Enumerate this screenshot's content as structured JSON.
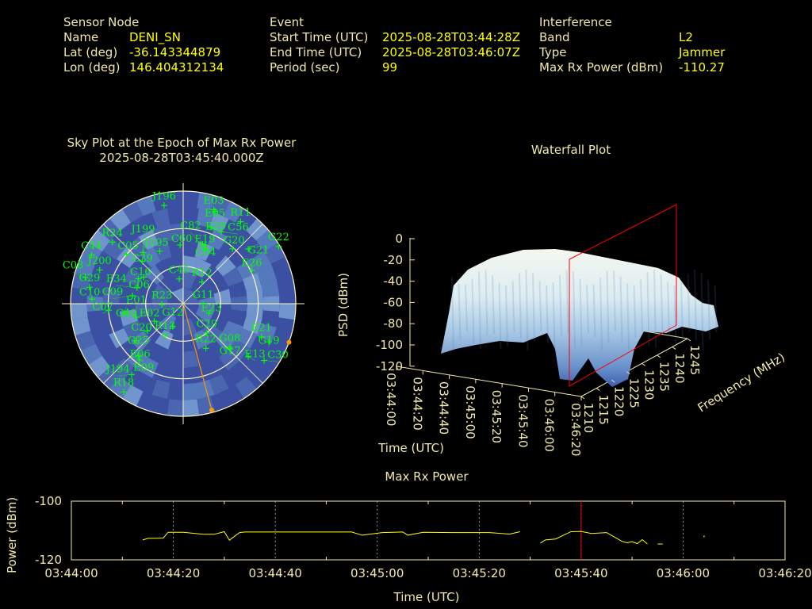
{
  "header": {
    "sensor": {
      "heading": "Sensor Node",
      "name_label": "Name",
      "name": "DENI_SN",
      "lat_label": "Lat (deg)",
      "lat": "-36.143344879",
      "lon_label": "Lon (deg)",
      "lon": "146.404312134"
    },
    "event": {
      "heading": "Event",
      "start_label": "Start Time (UTC)",
      "start": "2025-08-28T03:44:28Z",
      "end_label": "End Time (UTC)",
      "end": "2025-08-28T03:46:07Z",
      "period_label": "Period (sec)",
      "period": "99"
    },
    "interference": {
      "heading": "Interference",
      "band_label": "Band",
      "band": "L2",
      "type_label": "Type",
      "type": "Jammer",
      "power_label": "Max Rx Power (dBm)",
      "power": "-110.27"
    }
  },
  "colors": {
    "label": "#f2e8a8",
    "value": "#ffff00",
    "satellite": "#00ff00",
    "sky_bg": "#3b4fa3",
    "jammer": "#ff9900",
    "marker_line": "#ff0000"
  },
  "skyplot": {
    "title": "Sky Plot at the Epoch of Max Rx Power",
    "epoch": "2025-08-28T03:45:40.000Z",
    "elevation_rings_deg": [
      0,
      30,
      60
    ],
    "satellites": [
      {
        "id": "J196",
        "az": 349,
        "el": 10
      },
      {
        "id": "E03",
        "az": 18,
        "el": 11
      },
      {
        "id": "E05",
        "az": 19,
        "el": 12
      },
      {
        "id": "R11",
        "az": 35,
        "el": 10
      },
      {
        "id": "E29",
        "az": 20,
        "el": 25
      },
      {
        "id": "C56",
        "az": 28,
        "el": 25
      },
      {
        "id": "G22",
        "az": 59,
        "el": 1
      },
      {
        "id": "G20",
        "az": 42,
        "el": 31
      },
      {
        "id": "G21",
        "az": 50,
        "el": 22
      },
      {
        "id": "E26",
        "az": 64,
        "el": 29
      },
      {
        "id": "E19",
        "az": 18,
        "el": 40
      },
      {
        "id": "C04",
        "az": 21,
        "el": 40
      },
      {
        "id": "C82",
        "az": 22,
        "el": 43
      },
      {
        "id": "C60",
        "az": 357,
        "el": 43
      },
      {
        "id": "C45",
        "az": 351,
        "el": 70
      },
      {
        "id": "R12",
        "az": 41,
        "el": 67
      },
      {
        "id": "G11",
        "az": 91,
        "el": 74
      },
      {
        "id": "E23",
        "az": 110,
        "el": 68
      },
      {
        "id": "C29",
        "az": 141,
        "el": 60
      },
      {
        "id": "R22",
        "az": 153,
        "el": 50
      },
      {
        "id": "G08",
        "az": 133,
        "el": 39
      },
      {
        "id": "G17",
        "az": 134,
        "el": 38
      },
      {
        "id": "E21",
        "az": 113,
        "el": 22
      },
      {
        "id": "G19",
        "az": 114,
        "el": 15
      },
      {
        "id": "E13",
        "az": 129,
        "el": 23
      },
      {
        "id": "C30",
        "az": 125,
        "el": 11
      },
      {
        "id": "R13",
        "az": 210,
        "el": 61
      },
      {
        "id": "G12",
        "az": 205,
        "el": 70
      },
      {
        "id": "E02",
        "az": 239,
        "el": 63
      },
      {
        "id": "R23",
        "az": 268,
        "el": 73
      },
      {
        "id": "E01",
        "az": 254,
        "el": 51
      },
      {
        "id": "C20",
        "az": 233,
        "el": 54
      },
      {
        "id": "G25",
        "az": 232,
        "el": 42
      },
      {
        "id": "E06",
        "az": 221,
        "el": 35
      },
      {
        "id": "E09",
        "az": 218,
        "el": 33
      },
      {
        "id": "J194",
        "az": 216,
        "el": 20
      },
      {
        "id": "R18",
        "az": 214,
        "el": 5
      },
      {
        "id": "R24",
        "az": 311,
        "el": 15
      },
      {
        "id": "C05",
        "az": 311,
        "el": 30
      },
      {
        "id": "J195",
        "az": 336,
        "el": 44
      },
      {
        "id": "J199",
        "az": 322,
        "el": 38
      },
      {
        "id": "C39",
        "az": 316,
        "el": 43
      },
      {
        "id": "C16",
        "az": 299,
        "el": 49
      },
      {
        "id": "C06",
        "az": 304,
        "el": 52
      },
      {
        "id": "E34",
        "az": 289,
        "el": 51
      },
      {
        "id": "C09",
        "az": 279,
        "el": 49
      },
      {
        "id": "C40",
        "az": 261,
        "el": 42
      },
      {
        "id": "C07",
        "az": 265,
        "el": 30
      },
      {
        "id": "C10",
        "az": 273,
        "el": 17
      },
      {
        "id": "G29",
        "az": 280,
        "el": 14
      },
      {
        "id": "C44",
        "az": 298,
        "el": 7
      },
      {
        "id": "J200",
        "az": 292,
        "el": 18
      },
      {
        "id": "C08",
        "az": 285,
        "el": 9
      }
    ],
    "jammer_direction": {
      "az": 165,
      "el": 0
    },
    "jammer_points": [
      {
        "az": 165,
        "el": 2
      },
      {
        "az": 110,
        "el": 0
      }
    ]
  },
  "waterfall": {
    "title": "Waterfall Plot",
    "zlabel": "PSD (dBm)",
    "xlabel": "Time (UTC)",
    "ylabel": "Frequency (MHz)",
    "z_ticks": [
      "0",
      "-20",
      "-40",
      "-60",
      "-80",
      "-100",
      "-120"
    ],
    "time_ticks": [
      "03:44:00",
      "03:44:20",
      "03:44:40",
      "03:45:00",
      "03:45:20",
      "03:45:40",
      "03:46:00",
      "03:46:20"
    ],
    "freq_ticks": [
      "1210",
      "1215",
      "1220",
      "1225",
      "1230",
      "1235",
      "1240",
      "1245"
    ],
    "marker_time": "03:45:40"
  },
  "chart_data": {
    "type": "line",
    "title": "Max Rx Power",
    "xlabel": "Time (UTC)",
    "ylabel": "Power (dBm)",
    "xlim": [
      "03:44:00",
      "03:46:20"
    ],
    "ylim": [
      -120,
      -100
    ],
    "x_ticks": [
      "03:44:00",
      "03:44:20",
      "03:44:40",
      "03:45:00",
      "03:45:20",
      "03:45:40",
      "03:46:00",
      "03:46:20"
    ],
    "y_ticks": [
      "-100",
      "-120"
    ],
    "grid": "vertical dashed",
    "marker_time": "03:45:40",
    "segments": [
      [
        [
          "03:44:14",
          -113.2
        ],
        [
          "03:44:15",
          -112.7
        ],
        [
          "03:44:18",
          -112.6
        ],
        [
          "03:44:19",
          -110.6
        ],
        [
          "03:44:22",
          -110.6
        ],
        [
          "03:44:26",
          -111.3
        ],
        [
          "03:44:28",
          -111.3
        ],
        [
          "03:44:30",
          -110.4
        ],
        [
          "03:44:31",
          -113.3
        ],
        [
          "03:44:33",
          -110.7
        ],
        [
          "03:44:34",
          -110.5
        ],
        [
          "03:44:55",
          -110.5
        ],
        [
          "03:44:57",
          -111.6
        ],
        [
          "03:45:01",
          -110.7
        ],
        [
          "03:45:05",
          -110.5
        ],
        [
          "03:45:06",
          -111.6
        ],
        [
          "03:45:09",
          -110.6
        ],
        [
          "03:45:15",
          -110.7
        ],
        [
          "03:45:22",
          -110.7
        ],
        [
          "03:45:25",
          -111.1
        ],
        [
          "03:45:26",
          -111.2
        ],
        [
          "03:45:28",
          -110.4
        ]
      ],
      [
        [
          "03:45:32",
          -114.3
        ],
        [
          "03:45:33",
          -113.2
        ],
        [
          "03:45:35",
          -112.9
        ],
        [
          "03:45:38",
          -110.4
        ],
        [
          "03:45:40",
          -110.3
        ],
        [
          "03:45:42",
          -111.0
        ],
        [
          "03:45:45",
          -110.7
        ],
        [
          "03:45:48",
          -113.7
        ],
        [
          "03:45:49",
          -114.2
        ],
        [
          "03:45:50",
          -113.8
        ],
        [
          "03:45:51",
          -114.5
        ],
        [
          "03:45:52",
          -113.1
        ],
        [
          "03:45:53",
          -114.6
        ]
      ],
      [
        [
          "03:45:55",
          -114.6
        ],
        [
          "03:45:56",
          -114.6
        ]
      ],
      [
        [
          "03:46:04",
          -111.8
        ]
      ]
    ]
  }
}
